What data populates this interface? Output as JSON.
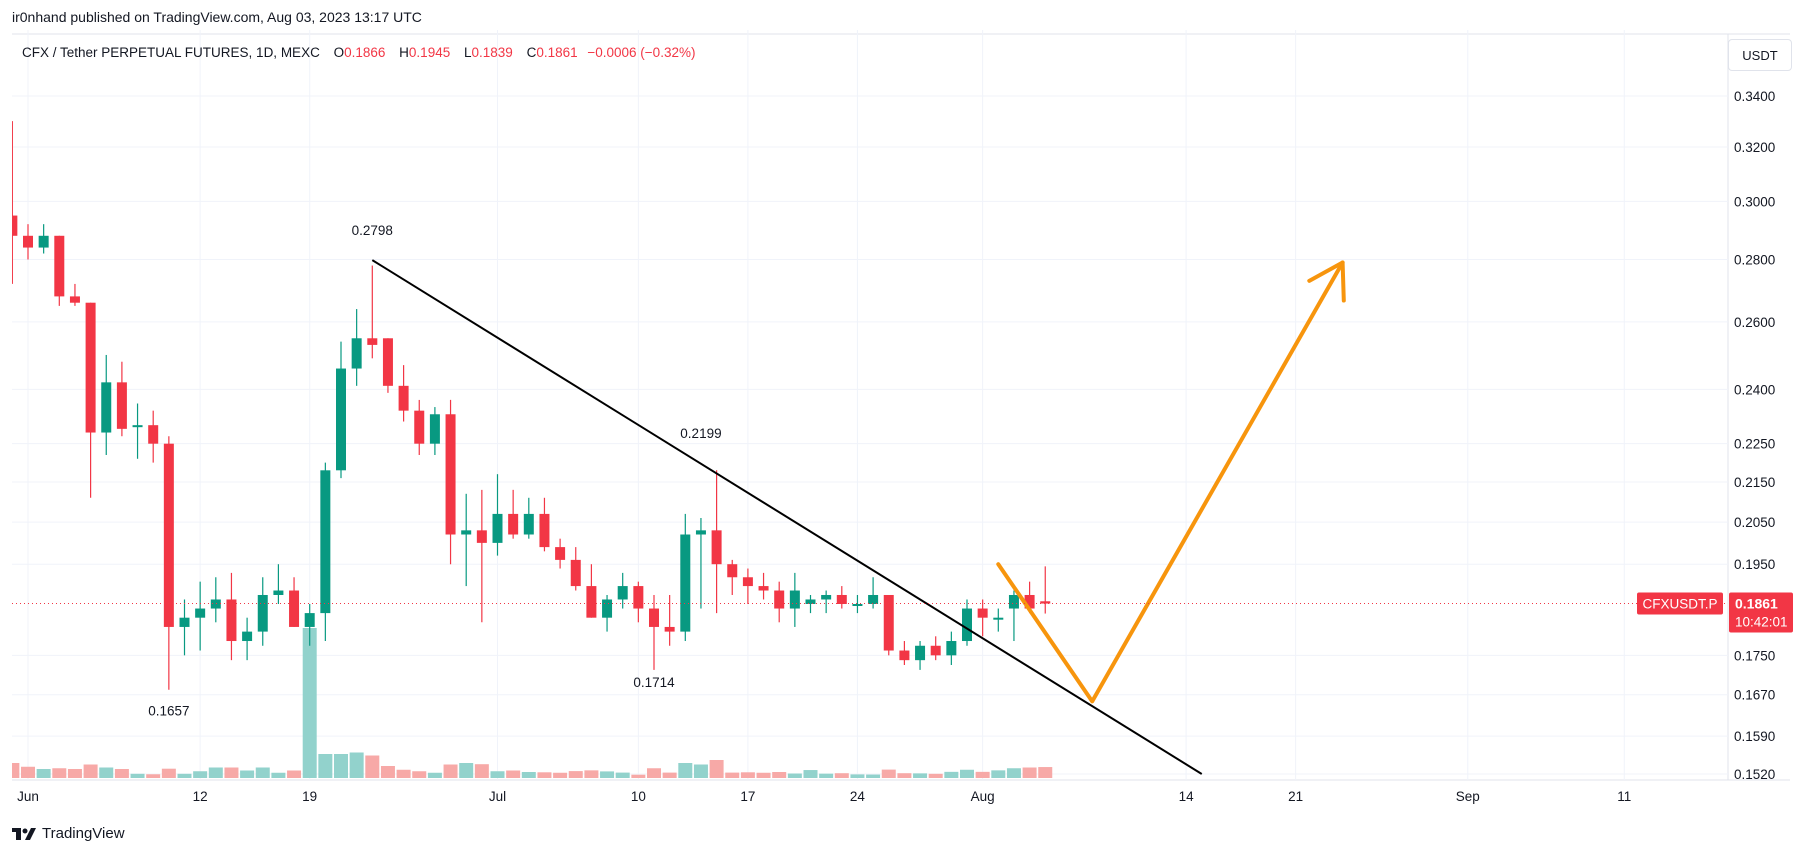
{
  "publisher_line": "ir0nhand published on TradingView.com, Aug 03, 2023 13:17 UTC",
  "legend": {
    "symbol": "CFX / Tether PERPETUAL FUTURES, 1D, MEXC",
    "open_label": "O",
    "open": "0.1866",
    "high_label": "H",
    "high": "0.1945",
    "low_label": "L",
    "low": "0.1839",
    "close_label": "C",
    "close": "0.1861",
    "change": "−0.0006 (−0.32%)"
  },
  "currency_button": "USDT",
  "brand": "TradingView",
  "price_badge": {
    "ticker": "CFXUSDT.P",
    "price": "0.1861",
    "countdown": "10:42:01"
  },
  "colors": {
    "up": "#089981",
    "down": "#f23645",
    "vol_up": "#92d2cc",
    "vol_down": "#f7a9a7",
    "arrow": "#f7950d",
    "trendline": "#000000"
  },
  "chart_data": {
    "type": "candlestick",
    "scale": "log",
    "ylim": [
      0.152,
      0.35
    ],
    "y_ticks": [
      "0.3400",
      "0.3200",
      "0.3000",
      "0.2800",
      "0.2600",
      "0.2400",
      "0.2250",
      "0.2150",
      "0.2050",
      "0.1950",
      "0.1750",
      "0.1670",
      "0.1590",
      "0.1520"
    ],
    "x_ticks": [
      {
        "date": "2023-06-01",
        "label": "Jun"
      },
      {
        "date": "2023-06-12",
        "label": "12"
      },
      {
        "date": "2023-06-19",
        "label": "19"
      },
      {
        "date": "2023-07-01",
        "label": "Jul"
      },
      {
        "date": "2023-07-10",
        "label": "10"
      },
      {
        "date": "2023-07-17",
        "label": "17"
      },
      {
        "date": "2023-07-24",
        "label": "24"
      },
      {
        "date": "2023-08-01",
        "label": "Aug"
      },
      {
        "date": "2023-08-14",
        "label": "14"
      },
      {
        "date": "2023-08-21",
        "label": "21"
      },
      {
        "date": "2023-09-01",
        "label": "Sep"
      },
      {
        "date": "2023-09-11",
        "label": "11"
      }
    ],
    "candles": [
      [
        "2023-05-31",
        0.295,
        0.33,
        0.272,
        0.288,
        10
      ],
      [
        "2023-06-01",
        0.288,
        0.292,
        0.28,
        0.284,
        7.5
      ],
      [
        "2023-06-02",
        0.284,
        0.292,
        0.282,
        0.288,
        6
      ],
      [
        "2023-06-03",
        0.288,
        0.288,
        0.265,
        0.268,
        6.5
      ],
      [
        "2023-06-04",
        0.268,
        0.272,
        0.265,
        0.266,
        6
      ],
      [
        "2023-06-05",
        0.266,
        0.266,
        0.211,
        0.228,
        9
      ],
      [
        "2023-06-06",
        0.228,
        0.25,
        0.222,
        0.242,
        7
      ],
      [
        "2023-06-07",
        0.242,
        0.248,
        0.227,
        0.229,
        6
      ],
      [
        "2023-06-08",
        0.23,
        0.236,
        0.221,
        0.23,
        2.8
      ],
      [
        "2023-06-09",
        0.23,
        0.234,
        0.22,
        0.225,
        2.5
      ],
      [
        "2023-06-10",
        0.225,
        0.227,
        0.168,
        0.181,
        6.2
      ],
      [
        "2023-06-11",
        0.181,
        0.187,
        0.175,
        0.183,
        2.8
      ],
      [
        "2023-06-12",
        0.183,
        0.191,
        0.176,
        0.185,
        4.5
      ],
      [
        "2023-06-13",
        0.185,
        0.192,
        0.182,
        0.187,
        7
      ],
      [
        "2023-06-14",
        0.187,
        0.193,
        0.174,
        0.178,
        7
      ],
      [
        "2023-06-15",
        0.178,
        0.183,
        0.174,
        0.18,
        5
      ],
      [
        "2023-06-16",
        0.18,
        0.192,
        0.177,
        0.188,
        7
      ],
      [
        "2023-06-17",
        0.188,
        0.195,
        0.186,
        0.189,
        3.5
      ],
      [
        "2023-06-18",
        0.189,
        0.192,
        0.181,
        0.181,
        5
      ],
      [
        "2023-06-19",
        0.181,
        0.186,
        0.177,
        0.184,
        5900000
      ],
      [
        "2023-06-20",
        0.184,
        0.22,
        0.178,
        0.218,
        16
      ],
      [
        "2023-06-21",
        0.218,
        0.254,
        0.216,
        0.246,
        16
      ],
      [
        "2023-06-22",
        0.246,
        0.264,
        0.241,
        0.255,
        17
      ],
      [
        "2023-06-23",
        0.255,
        0.278,
        0.249,
        0.253,
        15
      ],
      [
        "2023-06-24",
        0.255,
        0.255,
        0.239,
        0.241,
        8
      ],
      [
        "2023-06-25",
        0.241,
        0.247,
        0.231,
        0.234,
        5.5
      ],
      [
        "2023-06-26",
        0.234,
        0.237,
        0.222,
        0.225,
        4.5
      ],
      [
        "2023-06-27",
        0.225,
        0.235,
        0.222,
        0.233,
        3.5
      ],
      [
        "2023-06-28",
        0.233,
        0.237,
        0.195,
        0.202,
        9
      ],
      [
        "2023-06-29",
        0.202,
        0.212,
        0.19,
        0.203,
        10
      ],
      [
        "2023-06-30",
        0.203,
        0.213,
        0.182,
        0.2,
        9.2
      ],
      [
        "2023-07-01",
        0.2,
        0.217,
        0.197,
        0.207,
        4.5
      ],
      [
        "2023-07-02",
        0.207,
        0.213,
        0.201,
        0.202,
        5
      ],
      [
        "2023-07-03",
        0.202,
        0.211,
        0.201,
        0.207,
        4
      ],
      [
        "2023-07-04",
        0.207,
        0.211,
        0.198,
        0.199,
        3.8
      ],
      [
        "2023-07-05",
        0.199,
        0.201,
        0.194,
        0.196,
        3.5
      ],
      [
        "2023-07-06",
        0.196,
        0.199,
        0.189,
        0.19,
        4.6
      ],
      [
        "2023-07-07",
        0.19,
        0.195,
        0.183,
        0.183,
        5.1
      ],
      [
        "2023-07-08",
        0.183,
        0.188,
        0.18,
        0.187,
        4.4
      ],
      [
        "2023-07-09",
        0.187,
        0.193,
        0.185,
        0.19,
        3.6
      ],
      [
        "2023-07-10",
        0.19,
        0.191,
        0.182,
        0.185,
        2.2
      ],
      [
        "2023-07-11",
        0.185,
        0.188,
        0.172,
        0.181,
        6.5
      ],
      [
        "2023-07-12",
        0.181,
        0.188,
        0.177,
        0.18,
        3.6
      ],
      [
        "2023-07-13",
        0.18,
        0.207,
        0.178,
        0.202,
        10
      ],
      [
        "2023-07-14",
        0.202,
        0.206,
        0.185,
        0.203,
        9
      ],
      [
        "2023-07-15",
        0.203,
        0.218,
        0.184,
        0.195,
        12
      ],
      [
        "2023-07-16",
        0.195,
        0.196,
        0.188,
        0.192,
        3.6
      ],
      [
        "2023-07-17",
        0.192,
        0.194,
        0.186,
        0.19,
        3.8
      ],
      [
        "2023-07-18",
        0.19,
        0.193,
        0.187,
        0.189,
        3.5
      ],
      [
        "2023-07-19",
        0.189,
        0.191,
        0.182,
        0.185,
        4
      ],
      [
        "2023-07-20",
        0.185,
        0.193,
        0.181,
        0.189,
        3
      ],
      [
        "2023-07-21",
        0.186,
        0.188,
        0.184,
        0.187,
        5.3
      ],
      [
        "2023-07-22",
        0.187,
        0.189,
        0.184,
        0.188,
        2.9
      ],
      [
        "2023-07-23",
        0.188,
        0.19,
        0.185,
        0.186,
        3.2
      ],
      [
        "2023-07-24",
        0.186,
        0.188,
        0.184,
        0.186,
        2.4
      ],
      [
        "2023-07-25",
        0.186,
        0.192,
        0.185,
        0.188,
        2.3
      ],
      [
        "2023-07-26",
        0.188,
        0.188,
        0.175,
        0.176,
        5.6
      ],
      [
        "2023-07-27",
        0.176,
        0.178,
        0.173,
        0.174,
        3.2
      ],
      [
        "2023-07-28",
        0.174,
        0.178,
        0.172,
        0.177,
        3.1
      ],
      [
        "2023-07-29",
        0.177,
        0.179,
        0.174,
        0.175,
        2.8
      ],
      [
        "2023-07-30",
        0.175,
        0.18,
        0.173,
        0.178,
        4.1
      ],
      [
        "2023-07-31",
        0.178,
        0.187,
        0.177,
        0.185,
        5.5
      ],
      [
        "2023-08-01",
        0.185,
        0.187,
        0.179,
        0.183,
        4.1
      ],
      [
        "2023-08-02",
        0.183,
        0.185,
        0.18,
        0.183,
        5.1
      ],
      [
        "2023-08-03",
        0.185,
        0.189,
        0.178,
        0.188,
        6.5
      ],
      [
        "2023-08-04",
        0.188,
        0.191,
        0.184,
        0.185,
        7
      ],
      [
        "2023-08-05",
        0.1866,
        0.1945,
        0.1839,
        0.1861,
        7.3
      ]
    ],
    "annotations": [
      {
        "label": "0.2798",
        "date": "2023-06-23",
        "price": 0.2798
      },
      {
        "label": "0.2199",
        "date": "2023-07-14",
        "price": 0.2199
      },
      {
        "label": "0.1714",
        "date": "2023-07-11",
        "price": 0.1714
      },
      {
        "label": "0.1657",
        "date": "2023-06-10",
        "price": 0.1657
      }
    ],
    "trendline": {
      "from": {
        "date": "2023-06-23",
        "price": 0.2798
      },
      "to": {
        "date": "2023-08-15",
        "price": 0.152
      }
    },
    "projection_arrow": [
      {
        "date": "2023-08-02",
        "price": 0.195
      },
      {
        "date": "2023-08-08",
        "price": 0.1657
      },
      {
        "date": "2023-08-24",
        "price": 0.279
      }
    ],
    "last_price": 0.1861
  }
}
